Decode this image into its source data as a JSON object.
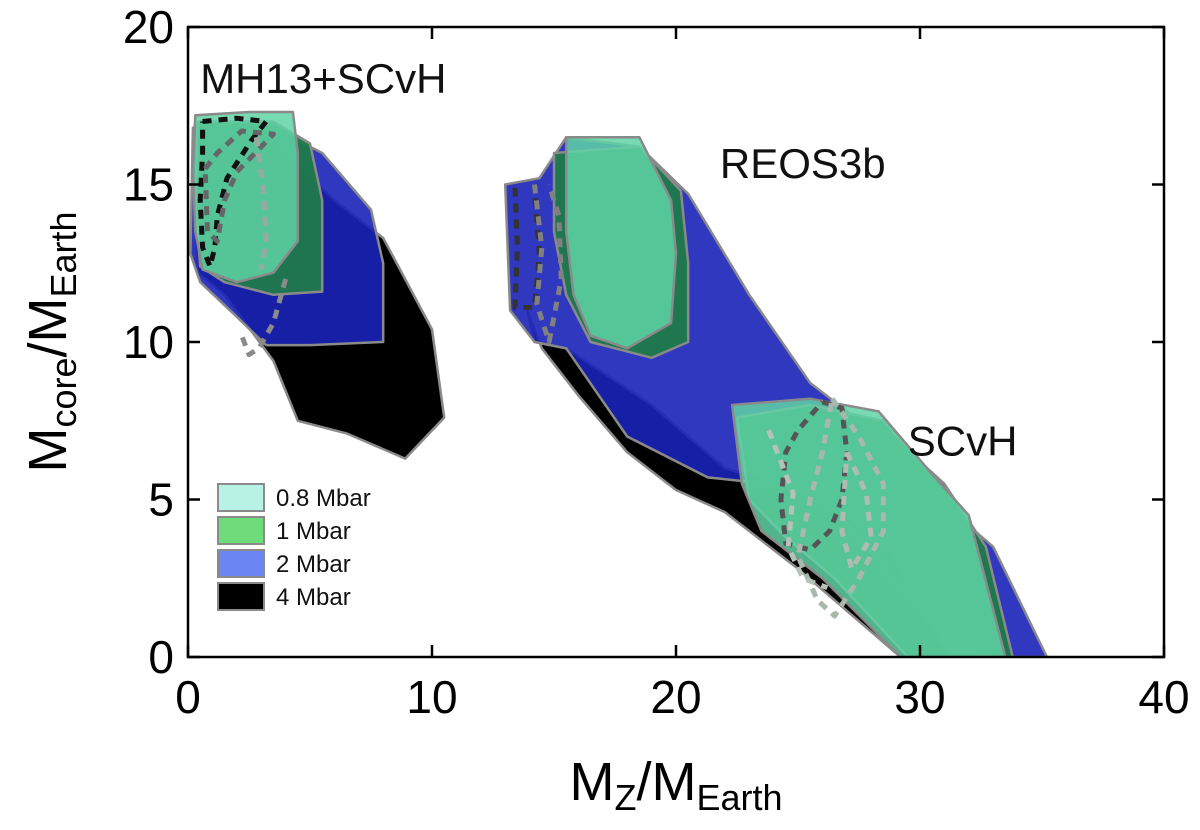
{
  "chart_data": {
    "type": "area",
    "title": "",
    "xlabel": {
      "main": "M",
      "sub1": "Z",
      "mid": "/M",
      "sub2": "Earth"
    },
    "ylabel": {
      "main": "M",
      "sub1": "core",
      "mid": "/M",
      "sub2": "Earth"
    },
    "xlim": [
      0,
      40
    ],
    "ylim": [
      0,
      20
    ],
    "xticks": [
      0,
      10,
      20,
      30,
      40
    ],
    "yticks": [
      0,
      5,
      10,
      15,
      20
    ],
    "xtick_labels": [
      "0",
      "10",
      "20",
      "30",
      "40"
    ],
    "ytick_labels": [
      "0",
      "5",
      "10",
      "15",
      "20"
    ],
    "grid": false,
    "legend_position": "bottom-left",
    "legend": [
      {
        "label": "0.8 Mbar",
        "color": "#b8f2e4"
      },
      {
        "label": "1 Mbar",
        "color": "#6fdc7c"
      },
      {
        "label": "2 Mbar",
        "color": "#6b86f2"
      },
      {
        "label": "4 Mbar",
        "color": "#000000"
      }
    ],
    "annotations": [
      {
        "text": "MH13+SCvH",
        "x": 0.5,
        "y": 17.9
      },
      {
        "text": "REOS3b",
        "x": 21.8,
        "y": 15.2
      },
      {
        "text": "SCvH",
        "x": 29.5,
        "y": 6.4
      }
    ],
    "series": [
      {
        "name": "MH13+SCvH 4 Mbar",
        "group": "MH13+SCvH",
        "pressure": "4 Mbar",
        "color": "#000000",
        "opacity": 1.0,
        "style": "fill",
        "points": [
          [
            0.2,
            15.5
          ],
          [
            1.5,
            16.5
          ],
          [
            3.2,
            16.5
          ],
          [
            6.0,
            14.5
          ],
          [
            8.0,
            13.3
          ],
          [
            10.0,
            10.4
          ],
          [
            10.5,
            7.6
          ],
          [
            8.9,
            6.3
          ],
          [
            6.5,
            7.1
          ],
          [
            4.5,
            7.5
          ],
          [
            3.5,
            9.4
          ],
          [
            1.5,
            11.5
          ],
          [
            0.4,
            12.2
          ]
        ]
      },
      {
        "name": "MH13+SCvH 2 Mbar",
        "group": "MH13+SCvH",
        "pressure": "2 Mbar",
        "color": "#1a22b8",
        "opacity": 0.9,
        "style": "fill",
        "points": [
          [
            0.2,
            16.8
          ],
          [
            3.5,
            16.8
          ],
          [
            5.5,
            16.0
          ],
          [
            7.5,
            14.2
          ],
          [
            8.0,
            12.5
          ],
          [
            8.0,
            10.0
          ],
          [
            5.0,
            9.9
          ],
          [
            3.2,
            9.9
          ],
          [
            2.0,
            10.8
          ],
          [
            0.5,
            11.9
          ],
          [
            0.1,
            12.8
          ]
        ]
      },
      {
        "name": "MH13+SCvH 1 Mbar",
        "group": "MH13+SCvH",
        "pressure": "1 Mbar",
        "color": "#1f7a4a",
        "opacity": 0.95,
        "style": "fill",
        "points": [
          [
            0.4,
            17.0
          ],
          [
            3.5,
            17.0
          ],
          [
            5.0,
            16.3
          ],
          [
            5.5,
            14.5
          ],
          [
            5.5,
            11.6
          ],
          [
            3.5,
            11.5
          ],
          [
            1.5,
            11.9
          ],
          [
            0.5,
            12.4
          ],
          [
            0.3,
            14.5
          ]
        ]
      },
      {
        "name": "MH13+SCvH 0.8 Mbar",
        "group": "MH13+SCvH",
        "pressure": "0.8 Mbar",
        "color": "#5fd3a4",
        "opacity": 0.85,
        "style": "fill",
        "points": [
          [
            0.3,
            17.2
          ],
          [
            2.5,
            17.3
          ],
          [
            4.3,
            17.3
          ],
          [
            4.5,
            16.0
          ],
          [
            4.5,
            13.2
          ],
          [
            3.5,
            12.2
          ],
          [
            2.0,
            11.9
          ],
          [
            0.6,
            12.3
          ],
          [
            0.3,
            13.5
          ],
          [
            0.2,
            15.5
          ]
        ]
      },
      {
        "name": "MH13+SCvH contour dark",
        "group": "MH13+SCvH",
        "color": "#111111",
        "opacity": 1.0,
        "style": "dash",
        "points": [
          [
            0.6,
            17.0
          ],
          [
            2.0,
            17.1
          ],
          [
            3.2,
            17.0
          ],
          [
            2.6,
            16.4
          ],
          [
            1.6,
            15.2
          ],
          [
            1.2,
            14.0
          ],
          [
            1.1,
            13.0
          ],
          [
            0.9,
            12.4
          ],
          [
            0.6,
            13.0
          ],
          [
            0.5,
            14.5
          ],
          [
            0.6,
            16.0
          ],
          [
            0.6,
            17.0
          ]
        ]
      },
      {
        "name": "MH13+SCvH contour grey",
        "group": "MH13+SCvH",
        "color": "#666666",
        "opacity": 1.0,
        "style": "dash",
        "points": [
          [
            0.7,
            15.5
          ],
          [
            1.2,
            16.0
          ],
          [
            2.2,
            16.7
          ],
          [
            3.5,
            16.6
          ],
          [
            3.0,
            16.2
          ],
          [
            2.0,
            15.4
          ],
          [
            1.5,
            14.5
          ],
          [
            1.2,
            13.2
          ],
          [
            0.8,
            13.5
          ],
          [
            0.7,
            15.5
          ]
        ]
      },
      {
        "name": "MH13+SCvH contour grey trailing",
        "group": "MH13+SCvH",
        "color": "#8a8a8a",
        "opacity": 1.0,
        "style": "dash",
        "points": [
          [
            4.0,
            12.0
          ],
          [
            3.5,
            10.6
          ],
          [
            2.9,
            9.8
          ],
          [
            2.5,
            9.6
          ],
          [
            2.2,
            10.2
          ]
        ]
      },
      {
        "name": "MH13+SCvH contour light",
        "group": "MH13+SCvH",
        "color": "#9aa9a0",
        "opacity": 1.0,
        "style": "dash",
        "points": [
          [
            2.8,
            16.5
          ],
          [
            3.1,
            14.8
          ],
          [
            3.2,
            13.2
          ],
          [
            3.0,
            12.3
          ]
        ]
      },
      {
        "name": "REOS3b/SCvH 4 Mbar",
        "group": "REOS3b/SCvH",
        "pressure": "4 Mbar",
        "color": "#000000",
        "opacity": 1.0,
        "style": "fill",
        "points": [
          [
            13.9,
            11.0
          ],
          [
            14.2,
            10.0
          ],
          [
            15.5,
            9.8
          ],
          [
            19.0,
            8.0
          ],
          [
            22.0,
            6.0
          ],
          [
            26.0,
            5.0
          ],
          [
            28.5,
            3.5
          ],
          [
            31.2,
            0
          ],
          [
            29.2,
            0
          ],
          [
            25.0,
            2.8
          ],
          [
            22.0,
            4.6
          ],
          [
            20.0,
            5.3
          ],
          [
            18.0,
            6.5
          ],
          [
            16.0,
            8.3
          ],
          [
            14.5,
            9.8
          ]
        ]
      },
      {
        "name": "REOS3b/SCvH 2 Mbar",
        "group": "REOS3b/SCvH",
        "pressure": "2 Mbar",
        "color": "#1a22b8",
        "opacity": 0.9,
        "style": "fill",
        "points": [
          [
            13.0,
            15.0
          ],
          [
            14.4,
            15.2
          ],
          [
            15.5,
            16.5
          ],
          [
            18.5,
            16.2
          ],
          [
            20.5,
            14.7
          ],
          [
            23.0,
            11.5
          ],
          [
            25.5,
            8.7
          ],
          [
            27.0,
            7.8
          ],
          [
            30.0,
            5.5
          ],
          [
            33.0,
            3.5
          ],
          [
            35.2,
            0
          ],
          [
            33.0,
            0
          ],
          [
            30.5,
            1.0
          ],
          [
            26.5,
            4.7
          ],
          [
            25.0,
            5.4
          ],
          [
            21.3,
            5.7
          ],
          [
            18.0,
            7.0
          ],
          [
            15.5,
            9.8
          ],
          [
            14.2,
            10.0
          ],
          [
            13.2,
            11.0
          ]
        ]
      },
      {
        "name": "REOS3b 1 Mbar",
        "group": "REOS3b",
        "pressure": "1 Mbar",
        "color": "#1f7a4a",
        "opacity": 0.95,
        "style": "fill",
        "points": [
          [
            15.0,
            16.0
          ],
          [
            18.5,
            16.2
          ],
          [
            20.2,
            14.8
          ],
          [
            20.5,
            12.5
          ],
          [
            20.5,
            10.0
          ],
          [
            19.0,
            9.5
          ],
          [
            16.5,
            10.0
          ],
          [
            15.5,
            11.5
          ],
          [
            15.0,
            13.5
          ]
        ]
      },
      {
        "name": "REOS3b 0.8 Mbar",
        "group": "REOS3b",
        "pressure": "0.8 Mbar",
        "color": "#5fd3a4",
        "opacity": 0.85,
        "style": "fill",
        "points": [
          [
            15.5,
            16.5
          ],
          [
            18.5,
            16.5
          ],
          [
            19.8,
            14.5
          ],
          [
            20.0,
            12.8
          ],
          [
            19.8,
            10.6
          ],
          [
            18.0,
            9.8
          ],
          [
            16.5,
            10.2
          ],
          [
            15.8,
            11.5
          ],
          [
            15.5,
            13.5
          ]
        ]
      },
      {
        "name": "SCvH 1 Mbar",
        "group": "SCvH",
        "pressure": "1 Mbar",
        "color": "#1f7a4a",
        "opacity": 0.95,
        "style": "fill",
        "points": [
          [
            22.5,
            7.6
          ],
          [
            25.5,
            8.0
          ],
          [
            28.5,
            7.5
          ],
          [
            30.0,
            6.2
          ],
          [
            31.0,
            5.5
          ],
          [
            32.7,
            3.5
          ],
          [
            33.8,
            0
          ],
          [
            29.5,
            0
          ],
          [
            26.5,
            2.5
          ],
          [
            24.5,
            3.8
          ],
          [
            23.0,
            5.0
          ]
        ]
      },
      {
        "name": "SCvH 0.8 Mbar",
        "group": "SCvH",
        "pressure": "0.8 Mbar",
        "color": "#5fd3a4",
        "opacity": 0.85,
        "style": "fill",
        "points": [
          [
            22.3,
            8.0
          ],
          [
            25.5,
            8.2
          ],
          [
            28.3,
            7.8
          ],
          [
            30.5,
            5.8
          ],
          [
            32.0,
            4.5
          ],
          [
            33.5,
            0
          ],
          [
            29.2,
            0
          ],
          [
            26.0,
            2.5
          ],
          [
            23.5,
            4.0
          ],
          [
            22.7,
            5.5
          ]
        ]
      },
      {
        "name": "REOS3b contour dark",
        "group": "REOS3b",
        "color": "#333333",
        "opacity": 1.0,
        "style": "dash",
        "points": [
          [
            13.4,
            14.9
          ],
          [
            13.5,
            13.0
          ],
          [
            13.4,
            11.1
          ],
          [
            14.2,
            11.1
          ],
          [
            14.4,
            12.8
          ],
          [
            14.2,
            14.8
          ]
        ]
      },
      {
        "name": "REOS3b contour grey",
        "group": "REOS3b",
        "color": "#808080",
        "opacity": 1.0,
        "style": "dash",
        "points": [
          [
            14.2,
            15.0
          ],
          [
            14.5,
            13.0
          ],
          [
            14.3,
            11.2
          ],
          [
            14.8,
            10.0
          ],
          [
            15.3,
            12.0
          ],
          [
            15.2,
            14.0
          ],
          [
            14.8,
            15.0
          ]
        ]
      },
      {
        "name": "SCvH contour dark",
        "group": "SCvH",
        "color": "#555555",
        "opacity": 1.0,
        "style": "dash",
        "points": [
          [
            26.0,
            8.1
          ],
          [
            26.8,
            7.9
          ],
          [
            27.0,
            6.5
          ],
          [
            26.8,
            5.0
          ],
          [
            26.3,
            4.0
          ],
          [
            25.5,
            3.4
          ],
          [
            24.5,
            3.6
          ],
          [
            24.3,
            5.0
          ],
          [
            24.5,
            6.5
          ],
          [
            25.0,
            7.2
          ],
          [
            26.0,
            8.1
          ]
        ]
      },
      {
        "name": "SCvH contour light outer",
        "group": "SCvH",
        "color": "#a8b8ac",
        "opacity": 1.0,
        "style": "dash",
        "points": [
          [
            26.4,
            8.2
          ],
          [
            27.5,
            7.0
          ],
          [
            28.5,
            5.5
          ],
          [
            28.5,
            4.0
          ],
          [
            27.5,
            2.5
          ],
          [
            26.5,
            1.3
          ],
          [
            25.8,
            1.8
          ],
          [
            25.0,
            3.2
          ],
          [
            25.5,
            5.0
          ],
          [
            26.0,
            6.5
          ],
          [
            26.4,
            8.2
          ]
        ]
      },
      {
        "name": "SCvH contour light inner",
        "group": "SCvH",
        "color": "#aebcb2",
        "opacity": 1.0,
        "style": "dash",
        "points": [
          [
            27.0,
            6.5
          ],
          [
            27.8,
            5.2
          ],
          [
            28.0,
            3.8
          ],
          [
            27.2,
            2.8
          ],
          [
            26.8,
            4.0
          ],
          [
            27.0,
            6.5
          ]
        ]
      },
      {
        "name": "SCvH contour light pair",
        "group": "SCvH",
        "color": "#b5c2b8",
        "opacity": 1.0,
        "style": "dash",
        "points": [
          [
            23.8,
            7.2
          ],
          [
            24.8,
            5.2
          ],
          [
            24.6,
            3.5
          ],
          [
            25.2,
            2.5
          ],
          [
            26.2,
            2.2
          ]
        ]
      }
    ]
  }
}
